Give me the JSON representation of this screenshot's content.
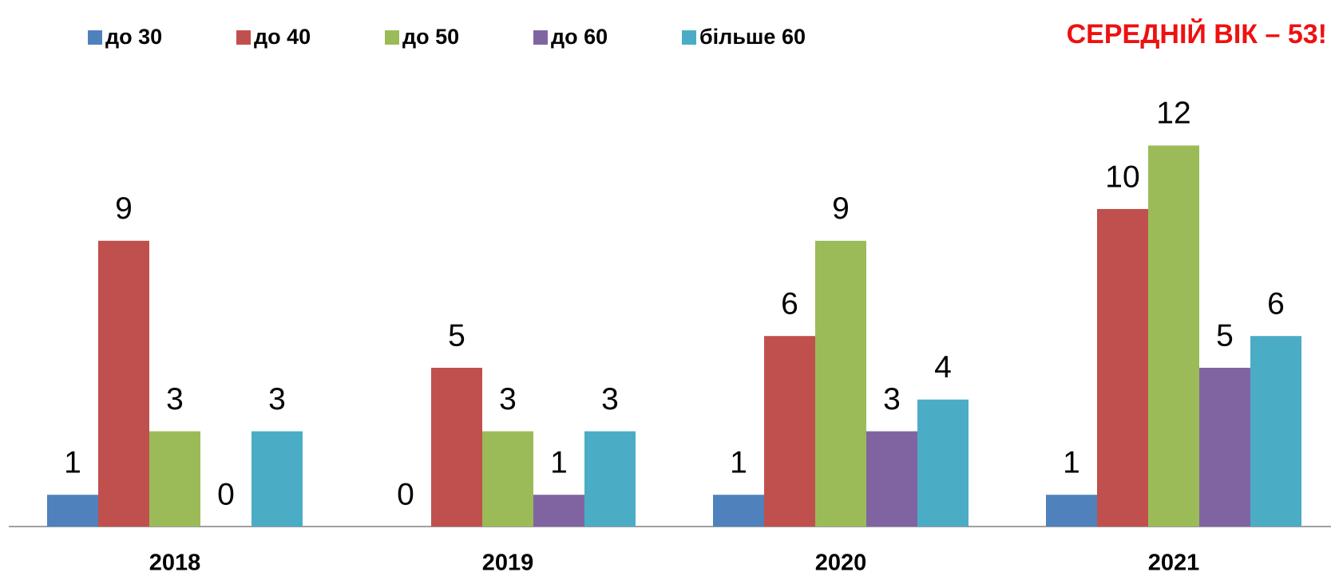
{
  "chart_data": {
    "type": "bar",
    "title": "СЕРЕДНІЙ ВІК – 53!",
    "categories": [
      "2018",
      "2019",
      "2020",
      "2021"
    ],
    "series": [
      {
        "name": "до 30",
        "color": "#4f81bd",
        "values": [
          1,
          0,
          1,
          1
        ]
      },
      {
        "name": "до 40",
        "color": "#c0504d",
        "values": [
          9,
          5,
          6,
          10
        ]
      },
      {
        "name": "до 50",
        "color": "#9bbb59",
        "values": [
          3,
          3,
          9,
          12
        ]
      },
      {
        "name": "до 60",
        "color": "#8064a2",
        "values": [
          0,
          1,
          3,
          5
        ]
      },
      {
        "name": "більше 60",
        "color": "#4bacc6",
        "values": [
          3,
          3,
          4,
          6
        ]
      }
    ],
    "legend": "top-left",
    "title_color": "#ee1111"
  }
}
